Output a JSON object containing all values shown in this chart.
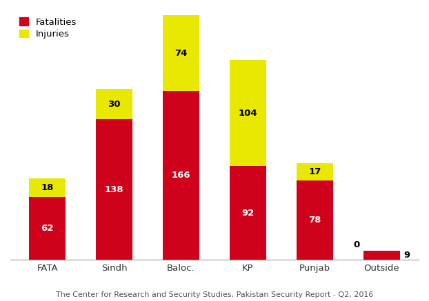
{
  "categories": [
    "FATA",
    "Sindh",
    "Baloc.",
    "KP",
    "Punjab",
    "Outside"
  ],
  "fatalities": [
    62,
    138,
    166,
    92,
    78,
    9
  ],
  "injuries": [
    18,
    30,
    74,
    104,
    17,
    0
  ],
  "fatalities_color": "#d0021b",
  "injuries_color": "#e8e800",
  "legend_fatalities": "Fatalities",
  "legend_injuries": "Injuries",
  "caption": "The Center for Research and Security Studies, Pakistan Security Report - Q2, 2016",
  "bar_width": 0.55,
  "ylim": [
    0,
    245
  ],
  "background_color": "#ffffff",
  "label_fontsize": 9.5,
  "tick_fontsize": 9.5,
  "caption_fontsize": 8.0,
  "ylabel_fontsize": 9.5
}
